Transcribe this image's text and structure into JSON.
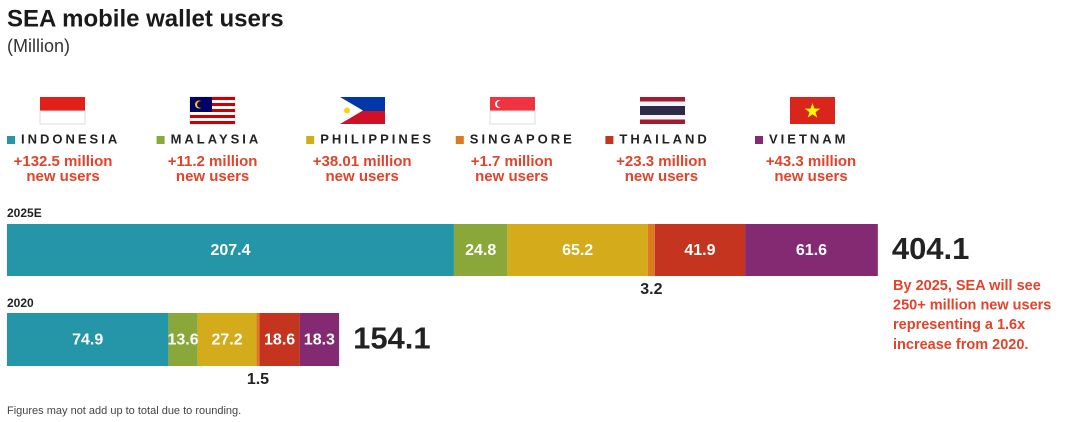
{
  "chart_data": {
    "type": "bar",
    "orientation": "horizontal",
    "stacked": true,
    "title": "SEA mobile wallet users",
    "subtitle": "(Million)",
    "categories": [
      "2025E",
      "2020"
    ],
    "series": [
      {
        "name": "INDONESIA",
        "color": "#2596a8",
        "note": [
          "+132.5 million",
          "new users"
        ],
        "values": [
          207.4,
          74.9
        ]
      },
      {
        "name": "MALAYSIA",
        "color": "#8aa83a",
        "note": [
          "+11.2 million",
          "new users"
        ],
        "values": [
          24.8,
          13.6
        ]
      },
      {
        "name": "PHILIPPINES",
        "color": "#d4ab1a",
        "note": [
          "+38.01 million",
          "new users"
        ],
        "values": [
          65.2,
          27.2
        ]
      },
      {
        "name": "SINGAPORE",
        "color": "#dd7a1f",
        "note": [
          "+1.7 million",
          "new users"
        ],
        "values": [
          3.2,
          1.5
        ]
      },
      {
        "name": "THAILAND",
        "color": "#c4341f",
        "note": [
          "+23.3 million",
          "new users"
        ],
        "values": [
          41.9,
          18.6
        ]
      },
      {
        "name": "VIETNAM",
        "color": "#832a72",
        "note": [
          "+43.3 million",
          "new users"
        ],
        "values": [
          61.6,
          18.3
        ]
      }
    ],
    "totals": [
      404.1,
      154.1
    ],
    "annotation": [
      "By 2025, SEA will see",
      "250+ million new users",
      "representing a 1.6x",
      "increase from 2020."
    ],
    "footnote": "Figures may not add up to total due to rounding."
  }
}
